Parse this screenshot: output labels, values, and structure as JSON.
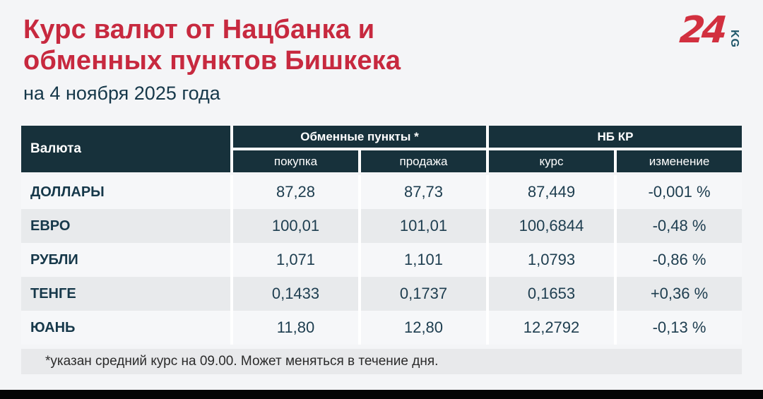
{
  "page": {
    "title_line1": "Курс валют от Нацбанка и",
    "title_line2": "обменных пунктов Бишкека",
    "subtitle": "на 4 ноября 2025 года",
    "footnote": "*указан средний курс на 09.00. Может меняться в течение дня."
  },
  "logo": {
    "number": "24",
    "suffix": "KG"
  },
  "table": {
    "col_currency": "Валюта",
    "group_exchange": "Обменные пункты *",
    "group_nbkr": "НБ КР",
    "sub_headers": [
      "покупка",
      "продажа",
      "курс",
      "изменение"
    ],
    "rows": [
      {
        "currency": "ДОЛЛАРЫ",
        "buy": "87,28",
        "sell": "87,73",
        "rate": "87,449",
        "change": "-0,001 %"
      },
      {
        "currency": "ЕВРО",
        "buy": "100,01",
        "sell": "101,01",
        "rate": "100,6844",
        "change": "-0,48 %"
      },
      {
        "currency": "РУБЛИ",
        "buy": "1,071",
        "sell": "1,101",
        "rate": "1,0793",
        "change": "-0,86 %"
      },
      {
        "currency": "ТЕНГЕ",
        "buy": "0,1433",
        "sell": "0,1737",
        "rate": "0,1653",
        "change": "+0,36 %"
      },
      {
        "currency": "ЮАНЬ",
        "buy": "11,80",
        "sell": "12,80",
        "rate": "12,2792",
        "change": "-0,13 %"
      }
    ]
  },
  "colors": {
    "title_red": "#c7293f",
    "logo_red": "#d2303f",
    "logo_teal": "#20576a",
    "header_bg": "#17313b",
    "row_light": "#f6f7f9",
    "row_gray": "#e8eaec",
    "footnote_bg": "#e8e9eb",
    "text_dark": "#1a3949",
    "page_bg": "#f4f5f7",
    "bottom_bar": "#050505"
  },
  "chart_data": {
    "type": "table",
    "title": "Курс валют от Нацбанка и обменных пунктов Бишкека",
    "subtitle": "на 4 ноября 2025 года",
    "columns": [
      "Валюта",
      "Обменные пункты * — покупка",
      "Обменные пункты * — продажа",
      "НБ КР — курс",
      "НБ КР — изменение"
    ],
    "rows": [
      [
        "ДОЛЛАРЫ",
        87.28,
        87.73,
        87.449,
        "-0,001 %"
      ],
      [
        "ЕВРО",
        100.01,
        101.01,
        100.6844,
        "-0,48 %"
      ],
      [
        "РУБЛИ",
        1.071,
        1.101,
        1.0793,
        "-0,86 %"
      ],
      [
        "ТЕНГЕ",
        0.1433,
        0.1737,
        0.1653,
        "+0,36 %"
      ],
      [
        "ЮАНЬ",
        11.8,
        12.8,
        12.2792,
        "-0,13 %"
      ]
    ],
    "footnote": "*указан средний курс на 09.00. Может меняться в течение дня."
  }
}
